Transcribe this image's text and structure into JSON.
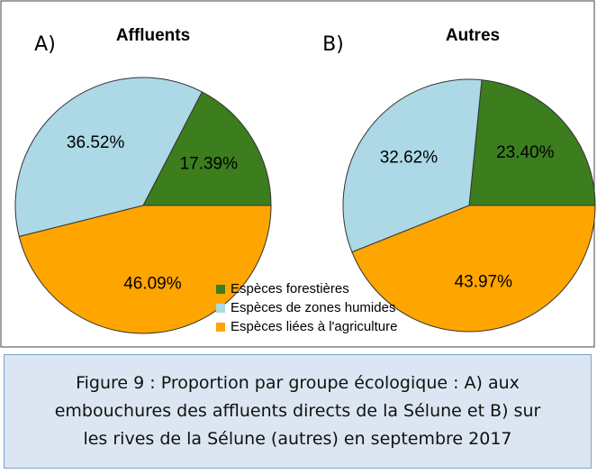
{
  "chart_data": [
    {
      "type": "pie",
      "label": "A)",
      "title": "Affluents",
      "categories": [
        "Espèces forestières",
        "Espèces de zones humides",
        "Espèces liées à l'agriculture"
      ],
      "values": [
        17.39,
        36.52,
        46.09
      ],
      "value_labels": [
        "17.39%",
        "36.52%",
        "46.09%"
      ],
      "colors": [
        "#3c7d1e",
        "#add8e6",
        "#ffa500"
      ]
    },
    {
      "type": "pie",
      "label": "B)",
      "title": "Autres",
      "categories": [
        "Espèces forestières",
        "Espèces de zones humides",
        "Espèces liées à l'agriculture"
      ],
      "values": [
        23.4,
        32.62,
        43.97
      ],
      "value_labels": [
        "23.40%",
        "32.62%",
        "43.97%"
      ],
      "colors": [
        "#3c7d1e",
        "#add8e6",
        "#ffa500"
      ]
    }
  ],
  "caption": [
    "Figure 9 : Proportion par groupe écologique : A) aux",
    "embouchures des affluents directs de la Sélune et B) sur",
    "les rives de la Sélune (autres) en septembre 2017"
  ]
}
